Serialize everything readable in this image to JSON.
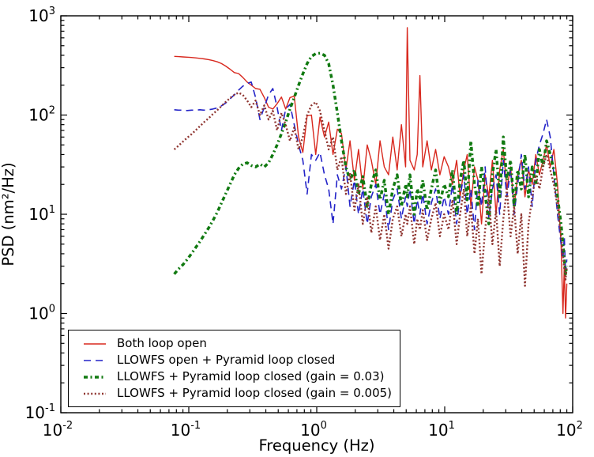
{
  "chart_data": {
    "type": "line",
    "title": "",
    "xlabel": "Frequency (Hz)",
    "ylabel": "PSD (nm²/Hz)",
    "x_scale": "log",
    "y_scale": "log",
    "xlim": [
      0.01,
      100
    ],
    "ylim": [
      0.1,
      1000
    ],
    "x_tick_exponents": [
      -2,
      -1,
      0,
      1,
      2
    ],
    "y_tick_exponents": [
      -1,
      0,
      1,
      2,
      3
    ],
    "grid": "off",
    "legend_position": "lower left",
    "axis_color": "#000000",
    "background": "#ffffff",
    "x": [
      0.077,
      0.083,
      0.09,
      0.097,
      0.105,
      0.113,
      0.122,
      0.132,
      0.143,
      0.154,
      0.167,
      0.18,
      0.194,
      0.21,
      0.227,
      0.245,
      0.264,
      0.286,
      0.308,
      0.333,
      0.36,
      0.389,
      0.42,
      0.454,
      0.49,
      0.53,
      0.572,
      0.618,
      0.667,
      0.721,
      0.779,
      0.841,
      0.909,
      0.982,
      1.06,
      1.15,
      1.24,
      1.34,
      1.45,
      1.56,
      1.69,
      1.82,
      1.97,
      2.12,
      2.29,
      2.48,
      2.67,
      2.89,
      3.12,
      3.37,
      3.64,
      3.93,
      4.25,
      4.59,
      4.95,
      5.1,
      5.35,
      5.78,
      6.1,
      6.4,
      6.74,
      7.28,
      7.86,
      8.49,
      9.17,
      9.9,
      10.7,
      11.5,
      12.4,
      13.2,
      14.1,
      15.0,
      16.0,
      17.1,
      18.2,
      19.4,
      20.7,
      22.1,
      23.6,
      25.2,
      26.9,
      28.7,
      30.6,
      32.7,
      34.9,
      37.2,
      39.7,
      42.4,
      45.2,
      48.3,
      51.5,
      55.0,
      58.7,
      62.6,
      66.8,
      71.3,
      76.1,
      81.2,
      84.0,
      86.0,
      88.0,
      90.0
    ],
    "series": [
      {
        "name": "Both loop open",
        "color": "#d8281e",
        "style": "solid",
        "width": 1.4,
        "values": [
          390,
          388,
          385,
          383,
          380,
          377,
          373,
          368,
          362,
          354,
          344,
          330,
          312,
          290,
          268,
          262,
          240,
          215,
          200,
          185,
          182,
          150,
          120,
          115,
          130,
          152,
          115,
          150,
          155,
          60,
          42,
          98,
          100,
          40,
          95,
          60,
          85,
          40,
          72,
          65,
          28,
          55,
          22,
          45,
          18,
          50,
          35,
          20,
          55,
          30,
          25,
          60,
          28,
          80,
          30,
          760,
          35,
          28,
          40,
          250,
          30,
          55,
          28,
          45,
          25,
          38,
          30,
          20,
          35,
          15,
          28,
          40,
          12,
          30,
          22,
          8,
          25,
          15,
          35,
          10,
          28,
          45,
          18,
          30,
          12,
          25,
          35,
          15,
          28,
          20,
          40,
          25,
          35,
          50,
          30,
          45,
          20,
          5,
          1.0,
          3,
          0.9,
          2.0
        ]
      },
      {
        "name": "LLOWFS open + Pyramid loop closed",
        "color": "#2424c8",
        "style": "dashed",
        "width": 1.6,
        "values": [
          113,
          112,
          112,
          111,
          112,
          112,
          113,
          112,
          113,
          115,
          118,
          124,
          132,
          145,
          160,
          178,
          195,
          208,
          215,
          150,
          90,
          120,
          160,
          185,
          120,
          70,
          115,
          128,
          80,
          50,
          35,
          16,
          40,
          35,
          42,
          25,
          18,
          8,
          25,
          18,
          30,
          12,
          22,
          10,
          18,
          8,
          15,
          20,
          10,
          16,
          7,
          14,
          18,
          9,
          15,
          12,
          18,
          8,
          14,
          10,
          16,
          8,
          13,
          18,
          9,
          15,
          10,
          20,
          8,
          15,
          25,
          10,
          18,
          7,
          22,
          12,
          30,
          9,
          18,
          25,
          10,
          35,
          15,
          28,
          10,
          20,
          40,
          18,
          30,
          12,
          35,
          50,
          65,
          90,
          60,
          25,
          10,
          5,
          3.5,
          6,
          2.5,
          3.5
        ]
      },
      {
        "name": "LLOWFS + Pyramid loop closed (gain = 0.03)",
        "color": "#117a11",
        "style": "dash-dot",
        "width": 3.5,
        "values": [
          2.5,
          2.8,
          3.1,
          3.5,
          4.0,
          4.6,
          5.3,
          6.2,
          7.3,
          8.6,
          10.5,
          13,
          16,
          20,
          25,
          29,
          32,
          33,
          31,
          30,
          32,
          30,
          33,
          40,
          50,
          65,
          85,
          115,
          150,
          200,
          260,
          330,
          390,
          415,
          420,
          400,
          330,
          200,
          105,
          55,
          30,
          22,
          28,
          16,
          24,
          12,
          20,
          28,
          14,
          22,
          10,
          18,
          25,
          12,
          20,
          15,
          25,
          10,
          18,
          14,
          22,
          11,
          18,
          28,
          13,
          20,
          15,
          28,
          10,
          22,
          35,
          14,
          55,
          20,
          12,
          30,
          16,
          8,
          25,
          45,
          15,
          60,
          22,
          35,
          12,
          28,
          18,
          40,
          15,
          30,
          20,
          45,
          30,
          55,
          40,
          28,
          15,
          8,
          5,
          3.5,
          2.5,
          3
        ]
      },
      {
        "name": "LLOWFS + Pyramid loop closed (gain = 0.005)",
        "color": "#8f3530",
        "style": "dotted",
        "width": 2.4,
        "values": [
          45,
          49,
          54,
          59,
          64,
          70,
          77,
          85,
          93,
          102,
          112,
          123,
          135,
          148,
          160,
          168,
          160,
          140,
          120,
          140,
          100,
          125,
          90,
          110,
          70,
          105,
          80,
          55,
          75,
          45,
          60,
          100,
          125,
          135,
          110,
          70,
          45,
          60,
          28,
          38,
          16,
          26,
          11,
          20,
          8,
          15,
          6.5,
          12,
          5.5,
          10,
          4.5,
          9,
          12,
          6,
          10,
          8,
          12,
          5,
          9,
          7,
          11,
          5.5,
          9,
          13,
          6,
          10,
          7,
          14,
          5,
          10,
          18,
          6,
          12,
          4,
          9,
          2.5,
          7,
          15,
          5,
          11,
          3,
          9,
          18,
          6,
          12,
          4,
          10,
          1.9,
          8,
          15,
          25,
          18,
          30,
          40,
          28,
          20,
          12,
          6,
          4,
          2.8,
          2.2,
          3
        ]
      }
    ]
  }
}
